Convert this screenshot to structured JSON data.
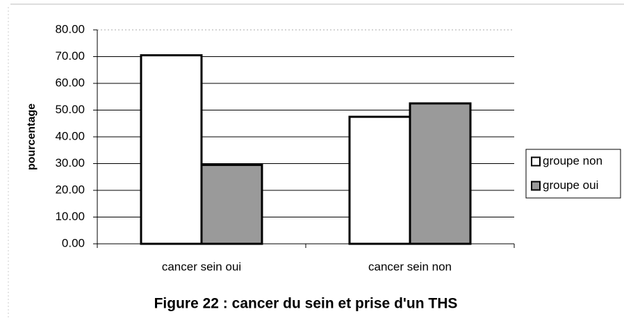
{
  "chart_data": {
    "type": "bar",
    "title": "Figure 22 : cancer du sein et prise d'un THS",
    "y_label": "pourcentage",
    "categories": [
      "cancer sein oui",
      "cancer sein non"
    ],
    "series": [
      {
        "name": "groupe non",
        "color": "#ffffff",
        "values": [
          70.5,
          47.5
        ]
      },
      {
        "name": "groupe oui",
        "color": "#9a9a9a",
        "values": [
          29.5,
          52.5
        ]
      }
    ],
    "ylim": [
      0,
      80
    ],
    "yticks": [
      {
        "value": 0,
        "label": "0.00"
      },
      {
        "value": 10,
        "label": "10.00"
      },
      {
        "value": 20,
        "label": "20.00"
      },
      {
        "value": 30,
        "label": "30.00"
      },
      {
        "value": 40,
        "label": "40.00"
      },
      {
        "value": 50,
        "label": "50.00"
      },
      {
        "value": 60,
        "label": "60.00"
      },
      {
        "value": 70,
        "label": "70.00"
      },
      {
        "value": 80,
        "label": "80.00"
      }
    ],
    "grid": true,
    "legend": "right"
  }
}
